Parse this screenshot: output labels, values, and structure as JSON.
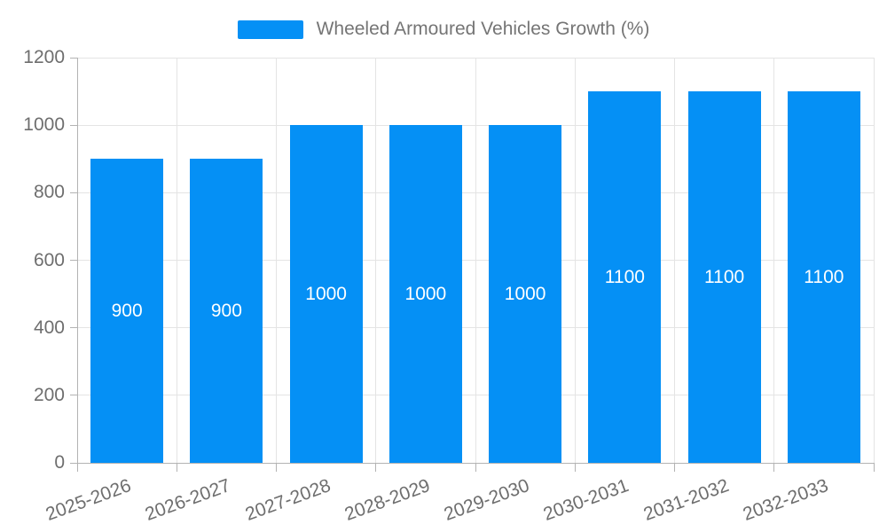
{
  "chart_data": {
    "type": "bar",
    "title": "Wheeled Armoured Vehicles Growth (%)",
    "categories": [
      "2025-2026",
      "2026-2027",
      "2027-2028",
      "2028-2029",
      "2029-2030",
      "2030-2031",
      "2031-2032",
      "2032-2033"
    ],
    "values": [
      900,
      900,
      1000,
      1000,
      1000,
      1100,
      1100,
      1100
    ],
    "data_labels": [
      "900",
      "900",
      "1000",
      "1000",
      "1000",
      "1100",
      "1100",
      "1100"
    ],
    "xlabel": "",
    "ylabel": "",
    "ylim": [
      0,
      1200
    ],
    "yticks": [
      0,
      200,
      400,
      600,
      800,
      1000,
      1200
    ],
    "grid": true,
    "legend_position": "top-center"
  },
  "legend": {
    "label": "Wheeled Armoured Vehicles Growth (%)",
    "swatch_color": "#0590F5"
  },
  "colors": {
    "bar": "#0590F5",
    "data_label": "#ffffff",
    "axis_label": "#6e6e6e",
    "legend_text": "#757575",
    "grid": "#e4e4e4",
    "axis_line": "#b3b3b3",
    "background": "#ffffff"
  }
}
